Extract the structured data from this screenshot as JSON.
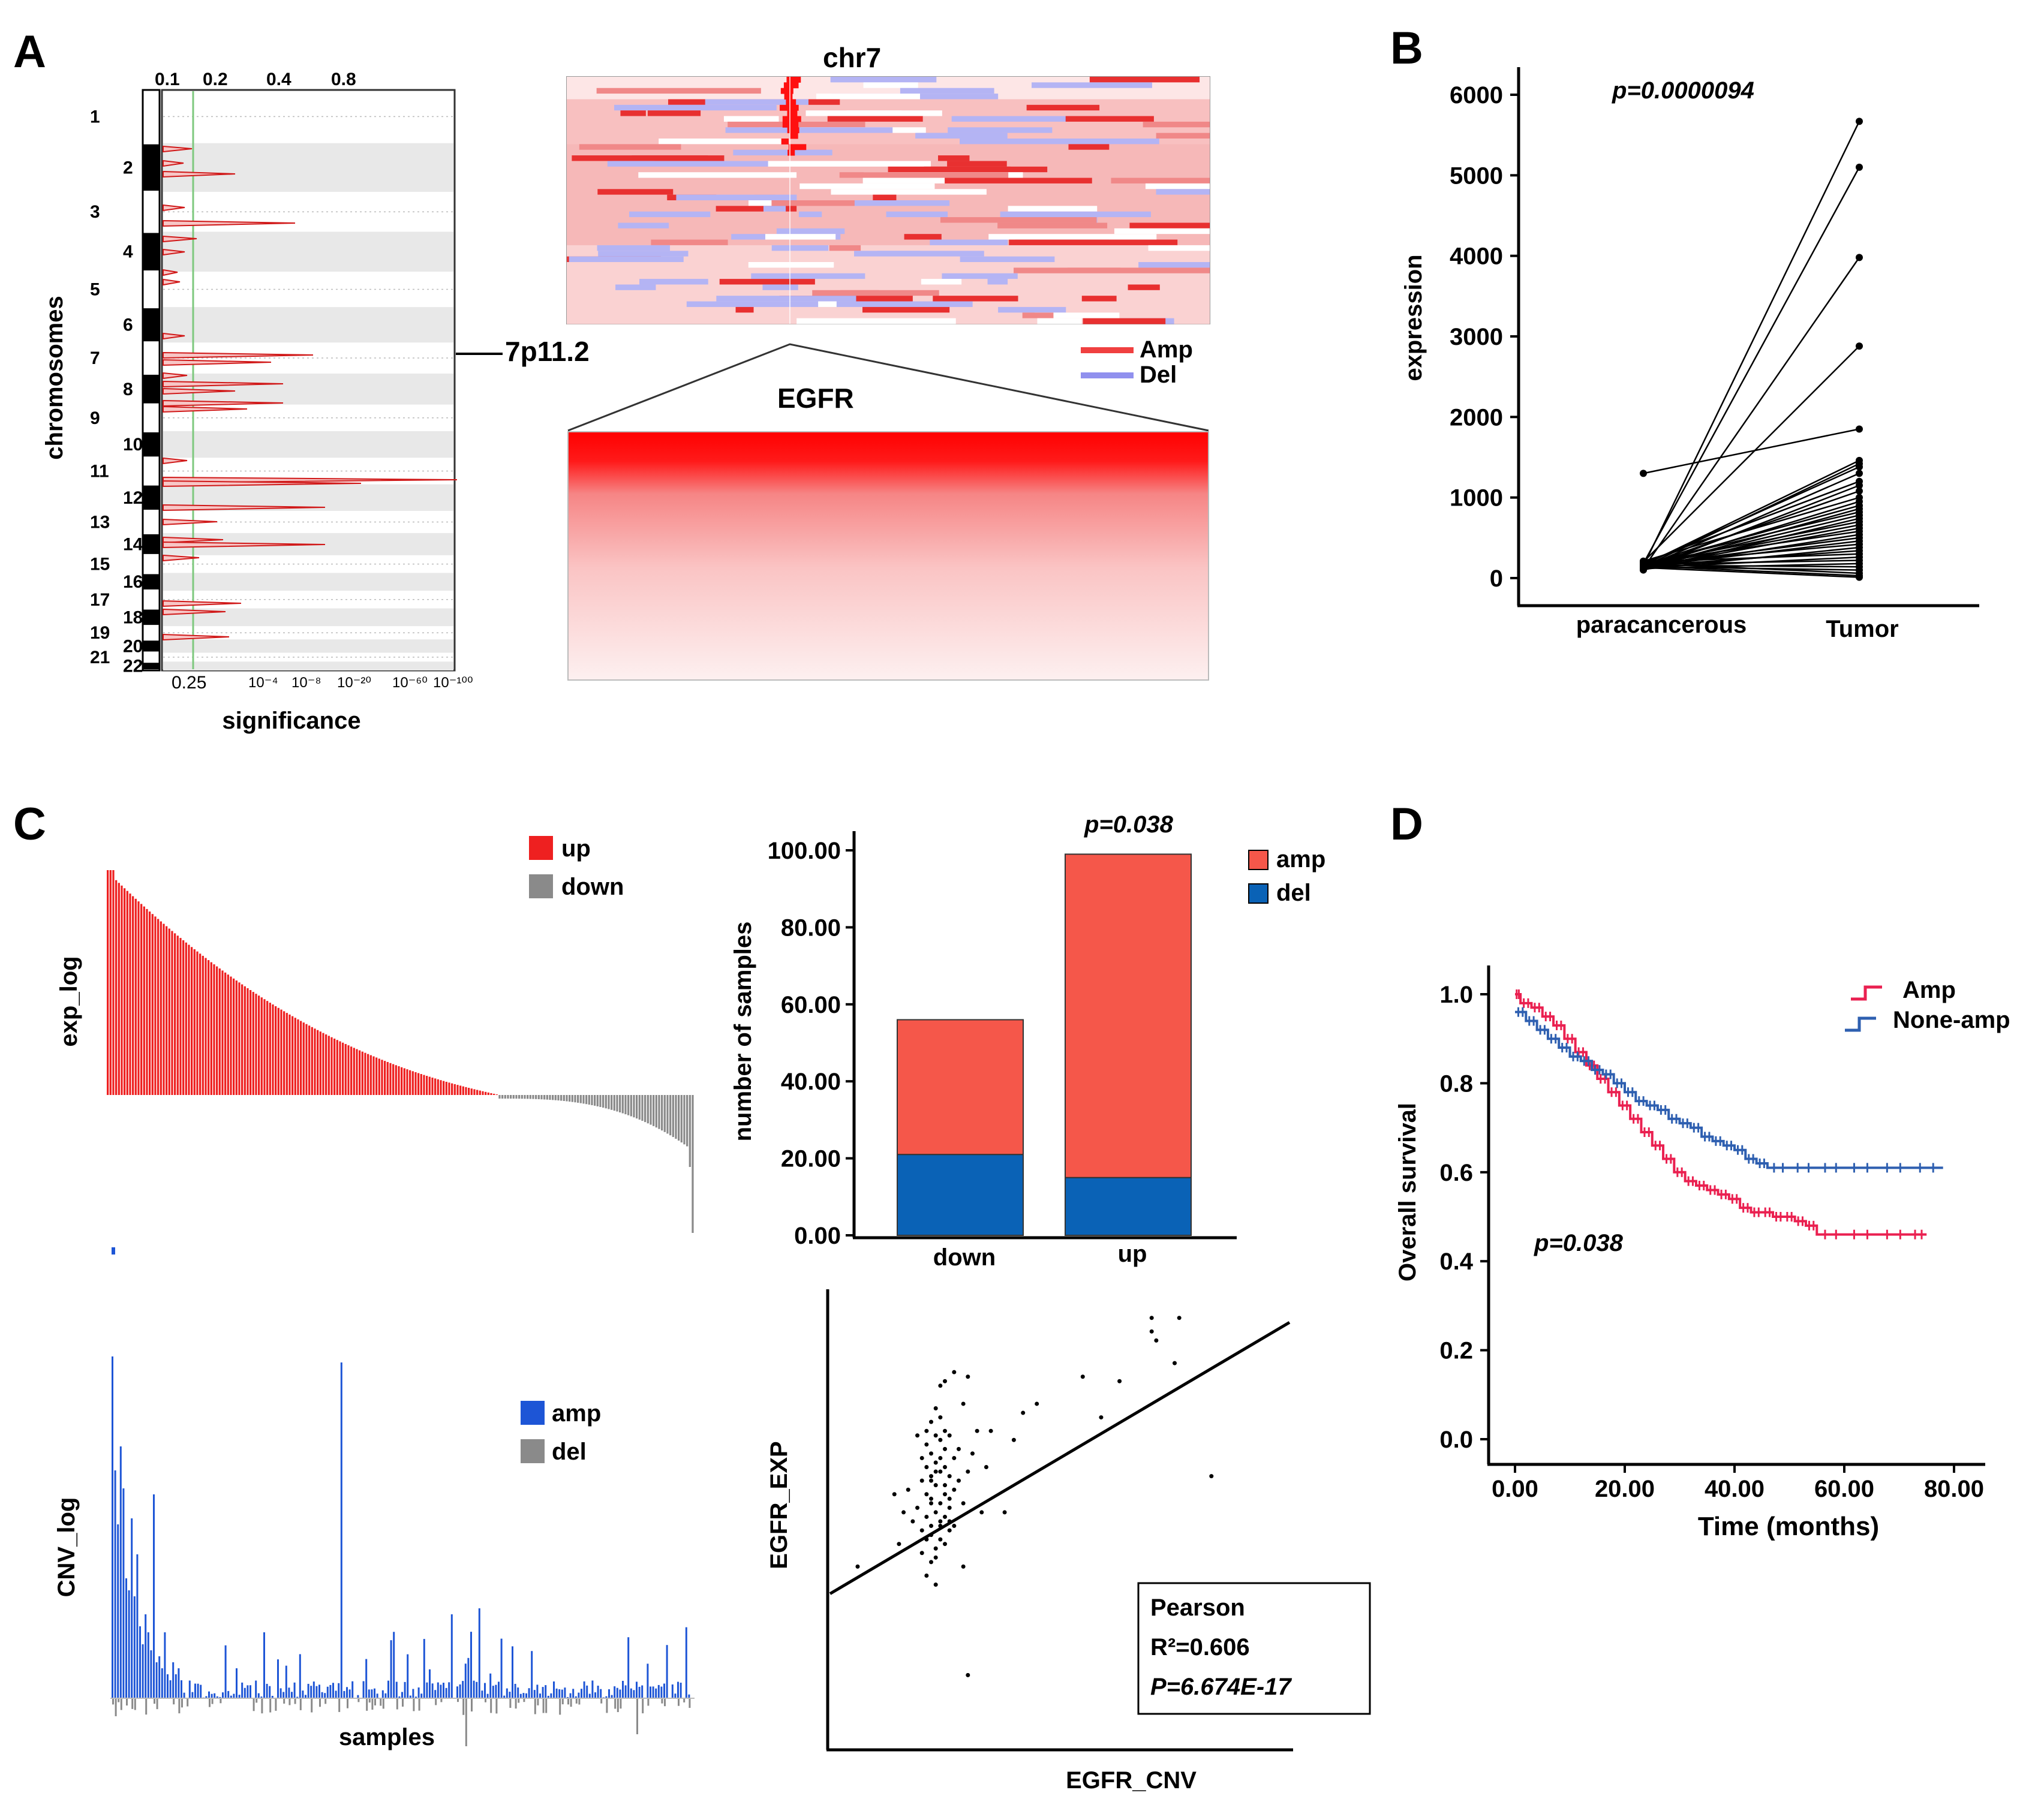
{
  "panels": {
    "A": {
      "letter": "A",
      "gistic": {
        "top_ticks": [
          "0.1",
          "0.2",
          "0.4",
          "0.8"
        ],
        "bottom_ticks": [
          "0.25",
          "10⁻⁴",
          "10⁻⁸",
          "10⁻²⁰",
          "10⁻⁶⁰",
          "10⁻¹⁰⁰"
        ],
        "ylabel": "chromosomes",
        "xlabel": "significance",
        "chromosomes": [
          "1",
          "2",
          "3",
          "4",
          "5",
          "6",
          "7",
          "8",
          "9",
          "10",
          "11",
          "12",
          "13",
          "14",
          "15",
          "16",
          "17",
          "18",
          "19",
          "20",
          "21",
          "22"
        ],
        "peak_label": "7p11.2"
      },
      "heatmap": {
        "title": "chr7",
        "gene": "EGFR",
        "legend": [
          {
            "label": "Amp",
            "color": "#f04040"
          },
          {
            "label": "Del",
            "color": "#9090ee"
          }
        ]
      }
    },
    "B": {
      "letter": "B",
      "chart_data": {
        "type": "line",
        "title": "",
        "annotation": "p=0.0000094",
        "xlabel": "",
        "ylabel": "expression",
        "categories": [
          "paracancerous",
          "Tumor"
        ],
        "ylim": [
          0,
          6000
        ],
        "yticks": [
          "0",
          "1000",
          "2000",
          "3000",
          "4000",
          "5000",
          "6000"
        ],
        "pairs": [
          [
            150,
            5670
          ],
          [
            180,
            5100
          ],
          [
            120,
            3980
          ],
          [
            200,
            2880
          ],
          [
            1300,
            1850
          ],
          [
            160,
            1460
          ],
          [
            140,
            1420
          ],
          [
            170,
            1380
          ],
          [
            130,
            1300
          ],
          [
            190,
            1200
          ],
          [
            110,
            1150
          ],
          [
            150,
            1080
          ],
          [
            210,
            1000
          ],
          [
            130,
            950
          ],
          [
            160,
            900
          ],
          [
            120,
            860
          ],
          [
            180,
            820
          ],
          [
            140,
            780
          ],
          [
            100,
            740
          ],
          [
            170,
            700
          ],
          [
            150,
            660
          ],
          [
            130,
            620
          ],
          [
            190,
            580
          ],
          [
            120,
            540
          ],
          [
            160,
            500
          ],
          [
            140,
            460
          ],
          [
            180,
            420
          ],
          [
            110,
            380
          ],
          [
            150,
            340
          ],
          [
            200,
            300
          ],
          [
            130,
            260
          ],
          [
            170,
            220
          ],
          [
            120,
            180
          ],
          [
            160,
            140
          ],
          [
            140,
            100
          ],
          [
            180,
            60
          ],
          [
            150,
            30
          ],
          [
            130,
            10
          ]
        ]
      }
    },
    "C": {
      "letter": "C",
      "exp": {
        "ylabel": "exp_log",
        "legend": [
          {
            "label": "up",
            "color": "#ee2020"
          },
          {
            "label": "down",
            "color": "#8a8a8a"
          }
        ],
        "n_up": 140,
        "n_down": 70
      },
      "cnv": {
        "ylabel": "CNV_log",
        "xlabel": "samples",
        "legend": [
          {
            "label": "amp",
            "color": "#1d55d6"
          },
          {
            "label": "del",
            "color": "#8a8a8a"
          }
        ]
      },
      "bar": {
        "chart_data": {
          "type": "bar",
          "title": "",
          "annotation": "p=0.038",
          "categories": [
            "down",
            "up"
          ],
          "series": [
            {
              "name": "del",
              "color": "#0a62b6",
              "values": [
                21,
                15
              ]
            },
            {
              "name": "amp",
              "color": "#f5574a",
              "values": [
                35,
                84
              ]
            }
          ],
          "xlabel": "",
          "ylabel": "number of samples",
          "ylim": [
            0,
            100
          ],
          "yticks": [
            "0.00",
            "20.00",
            "40.00",
            "60.00",
            "80.00",
            "100.00"
          ],
          "legend": [
            {
              "label": "amp",
              "color": "#f5574a"
            },
            {
              "label": "del",
              "color": "#0a62b6"
            }
          ]
        }
      },
      "scatter": {
        "chart_data": {
          "type": "scatter",
          "xlabel": "EGFR_CNV",
          "ylabel": "EGFR_EXP",
          "stats_title": "Pearson",
          "r2": "R²=0.606",
          "pval": "P=6.674E-17",
          "xlim": [
            0,
            10
          ],
          "ylim": [
            0,
            10
          ],
          "fit": {
            "slope": 0.6,
            "intercept": 3.4
          },
          "points": [
            [
              2.2,
              5.5
            ],
            [
              2.3,
              5.8
            ],
            [
              2.1,
              6.2
            ],
            [
              2.4,
              5.0
            ],
            [
              2.5,
              6.6
            ],
            [
              2.2,
              4.7
            ],
            [
              2.3,
              6.9
            ],
            [
              2.6,
              5.3
            ],
            [
              2.1,
              5.1
            ],
            [
              2.4,
              6.1
            ],
            [
              2.2,
              6.5
            ],
            [
              2.5,
              5.6
            ],
            [
              2.3,
              4.4
            ],
            [
              2.0,
              5.9
            ],
            [
              2.6,
              6.0
            ],
            [
              2.4,
              4.9
            ],
            [
              2.2,
              7.2
            ],
            [
              2.5,
              7.0
            ],
            [
              2.3,
              5.2
            ],
            [
              2.1,
              4.6
            ],
            [
              2.7,
              5.7
            ],
            [
              2.4,
              6.8
            ],
            [
              2.2,
              5.4
            ],
            [
              2.6,
              4.8
            ],
            [
              2.3,
              6.3
            ],
            [
              2.0,
              4.3
            ],
            [
              2.5,
              5.1
            ],
            [
              2.1,
              6.7
            ],
            [
              2.7,
              6.4
            ],
            [
              2.4,
              5.4
            ],
            [
              2.2,
              4.1
            ],
            [
              2.8,
              5.9
            ],
            [
              2.3,
              7.5
            ],
            [
              2.6,
              5.0
            ],
            [
              2.1,
              5.6
            ],
            [
              2.5,
              4.5
            ],
            [
              2.4,
              7.3
            ],
            [
              2.2,
              6.0
            ],
            [
              1.9,
              5.3
            ],
            [
              2.6,
              6.9
            ],
            [
              3.0,
              6.1
            ],
            [
              2.9,
              5.4
            ],
            [
              3.2,
              7.0
            ],
            [
              2.0,
              6.4
            ],
            [
              1.8,
              5.0
            ],
            [
              2.3,
              4.2
            ],
            [
              2.7,
              4.9
            ],
            [
              2.5,
              6.2
            ],
            [
              2.2,
              5.9
            ],
            [
              2.4,
              4.6
            ],
            [
              1.7,
              5.7
            ],
            [
              2.1,
              7.0
            ],
            [
              2.6,
              5.5
            ],
            [
              3.1,
              6.5
            ],
            [
              2.3,
              6.1
            ],
            [
              2.0,
              4.8
            ],
            [
              2.8,
              6.6
            ],
            [
              2.5,
              5.8
            ],
            [
              2.4,
              6.4
            ],
            [
              2.2,
              4.9
            ],
            [
              2.5,
              8.1
            ],
            [
              2.7,
              8.3
            ],
            [
              2.4,
              8.0
            ],
            [
              2.9,
              7.6
            ],
            [
              3.0,
              8.2
            ],
            [
              1.5,
              4.5
            ],
            [
              1.6,
              5.2
            ],
            [
              2.3,
              3.6
            ],
            [
              2.1,
              3.8
            ],
            [
              3.3,
              5.2
            ],
            [
              3.8,
              5.2
            ],
            [
              3.5,
              7.0
            ],
            [
              4.2,
              7.4
            ],
            [
              4.5,
              7.6
            ],
            [
              5.5,
              8.2
            ],
            [
              5.9,
              7.3
            ],
            [
              6.3,
              8.1
            ],
            [
              7.0,
              9.2
            ],
            [
              7.1,
              9.0
            ],
            [
              7.0,
              9.5
            ],
            [
              7.6,
              9.5
            ],
            [
              7.5,
              8.5
            ],
            [
              8.3,
              6.0
            ],
            [
              3.0,
              1.6
            ],
            [
              0.6,
              4.0
            ],
            [
              4.0,
              6.8
            ],
            [
              1.4,
              5.6
            ],
            [
              2.9,
              4.0
            ],
            [
              3.4,
              6.2
            ],
            [
              1.9,
              6.9
            ]
          ]
        }
      }
    },
    "D": {
      "letter": "D",
      "chart_data": {
        "type": "line",
        "title": "",
        "annotation": "p=0.038",
        "xlabel": "Time (months)",
        "ylabel": "Overall survival",
        "xlim": [
          0,
          80
        ],
        "ylim": [
          0,
          1.05
        ],
        "xticks": [
          "0.00",
          "20.00",
          "40.00",
          "60.00",
          "80.00"
        ],
        "yticks": [
          "0.0",
          "0.2",
          "0.4",
          "0.6",
          "0.8",
          "1.0"
        ],
        "series": [
          {
            "name": "Amp",
            "color": "#ea2050",
            "points": [
              [
                0,
                1.0
              ],
              [
                1,
                0.98
              ],
              [
                3,
                0.97
              ],
              [
                5,
                0.95
              ],
              [
                7,
                0.93
              ],
              [
                9,
                0.9
              ],
              [
                11,
                0.87
              ],
              [
                13,
                0.84
              ],
              [
                15,
                0.81
              ],
              [
                17,
                0.78
              ],
              [
                19,
                0.75
              ],
              [
                21,
                0.72
              ],
              [
                23,
                0.69
              ],
              [
                25,
                0.66
              ],
              [
                27,
                0.63
              ],
              [
                29,
                0.6
              ],
              [
                31,
                0.58
              ],
              [
                33,
                0.57
              ],
              [
                35,
                0.56
              ],
              [
                37,
                0.55
              ],
              [
                39,
                0.54
              ],
              [
                41,
                0.52
              ],
              [
                43,
                0.51
              ],
              [
                45,
                0.51
              ],
              [
                47,
                0.5
              ],
              [
                49,
                0.5
              ],
              [
                51,
                0.49
              ],
              [
                53,
                0.48
              ],
              [
                55,
                0.46
              ],
              [
                60,
                0.46
              ],
              [
                66,
                0.46
              ],
              [
                72,
                0.46
              ],
              [
                75,
                0.46
              ]
            ]
          },
          {
            "name": "None-amp",
            "color": "#2e5fb0",
            "points": [
              [
                0,
                0.96
              ],
              [
                2,
                0.94
              ],
              [
                4,
                0.92
              ],
              [
                6,
                0.9
              ],
              [
                8,
                0.88
              ],
              [
                10,
                0.86
              ],
              [
                12,
                0.85
              ],
              [
                14,
                0.83
              ],
              [
                16,
                0.82
              ],
              [
                18,
                0.8
              ],
              [
                20,
                0.78
              ],
              [
                22,
                0.76
              ],
              [
                24,
                0.75
              ],
              [
                26,
                0.74
              ],
              [
                28,
                0.72
              ],
              [
                30,
                0.71
              ],
              [
                32,
                0.7
              ],
              [
                34,
                0.68
              ],
              [
                36,
                0.67
              ],
              [
                38,
                0.66
              ],
              [
                40,
                0.65
              ],
              [
                42,
                0.63
              ],
              [
                44,
                0.62
              ],
              [
                46,
                0.61
              ],
              [
                50,
                0.61
              ],
              [
                55,
                0.61
              ],
              [
                60,
                0.61
              ],
              [
                66,
                0.61
              ],
              [
                72,
                0.61
              ],
              [
                78,
                0.61
              ]
            ]
          }
        ]
      }
    }
  }
}
